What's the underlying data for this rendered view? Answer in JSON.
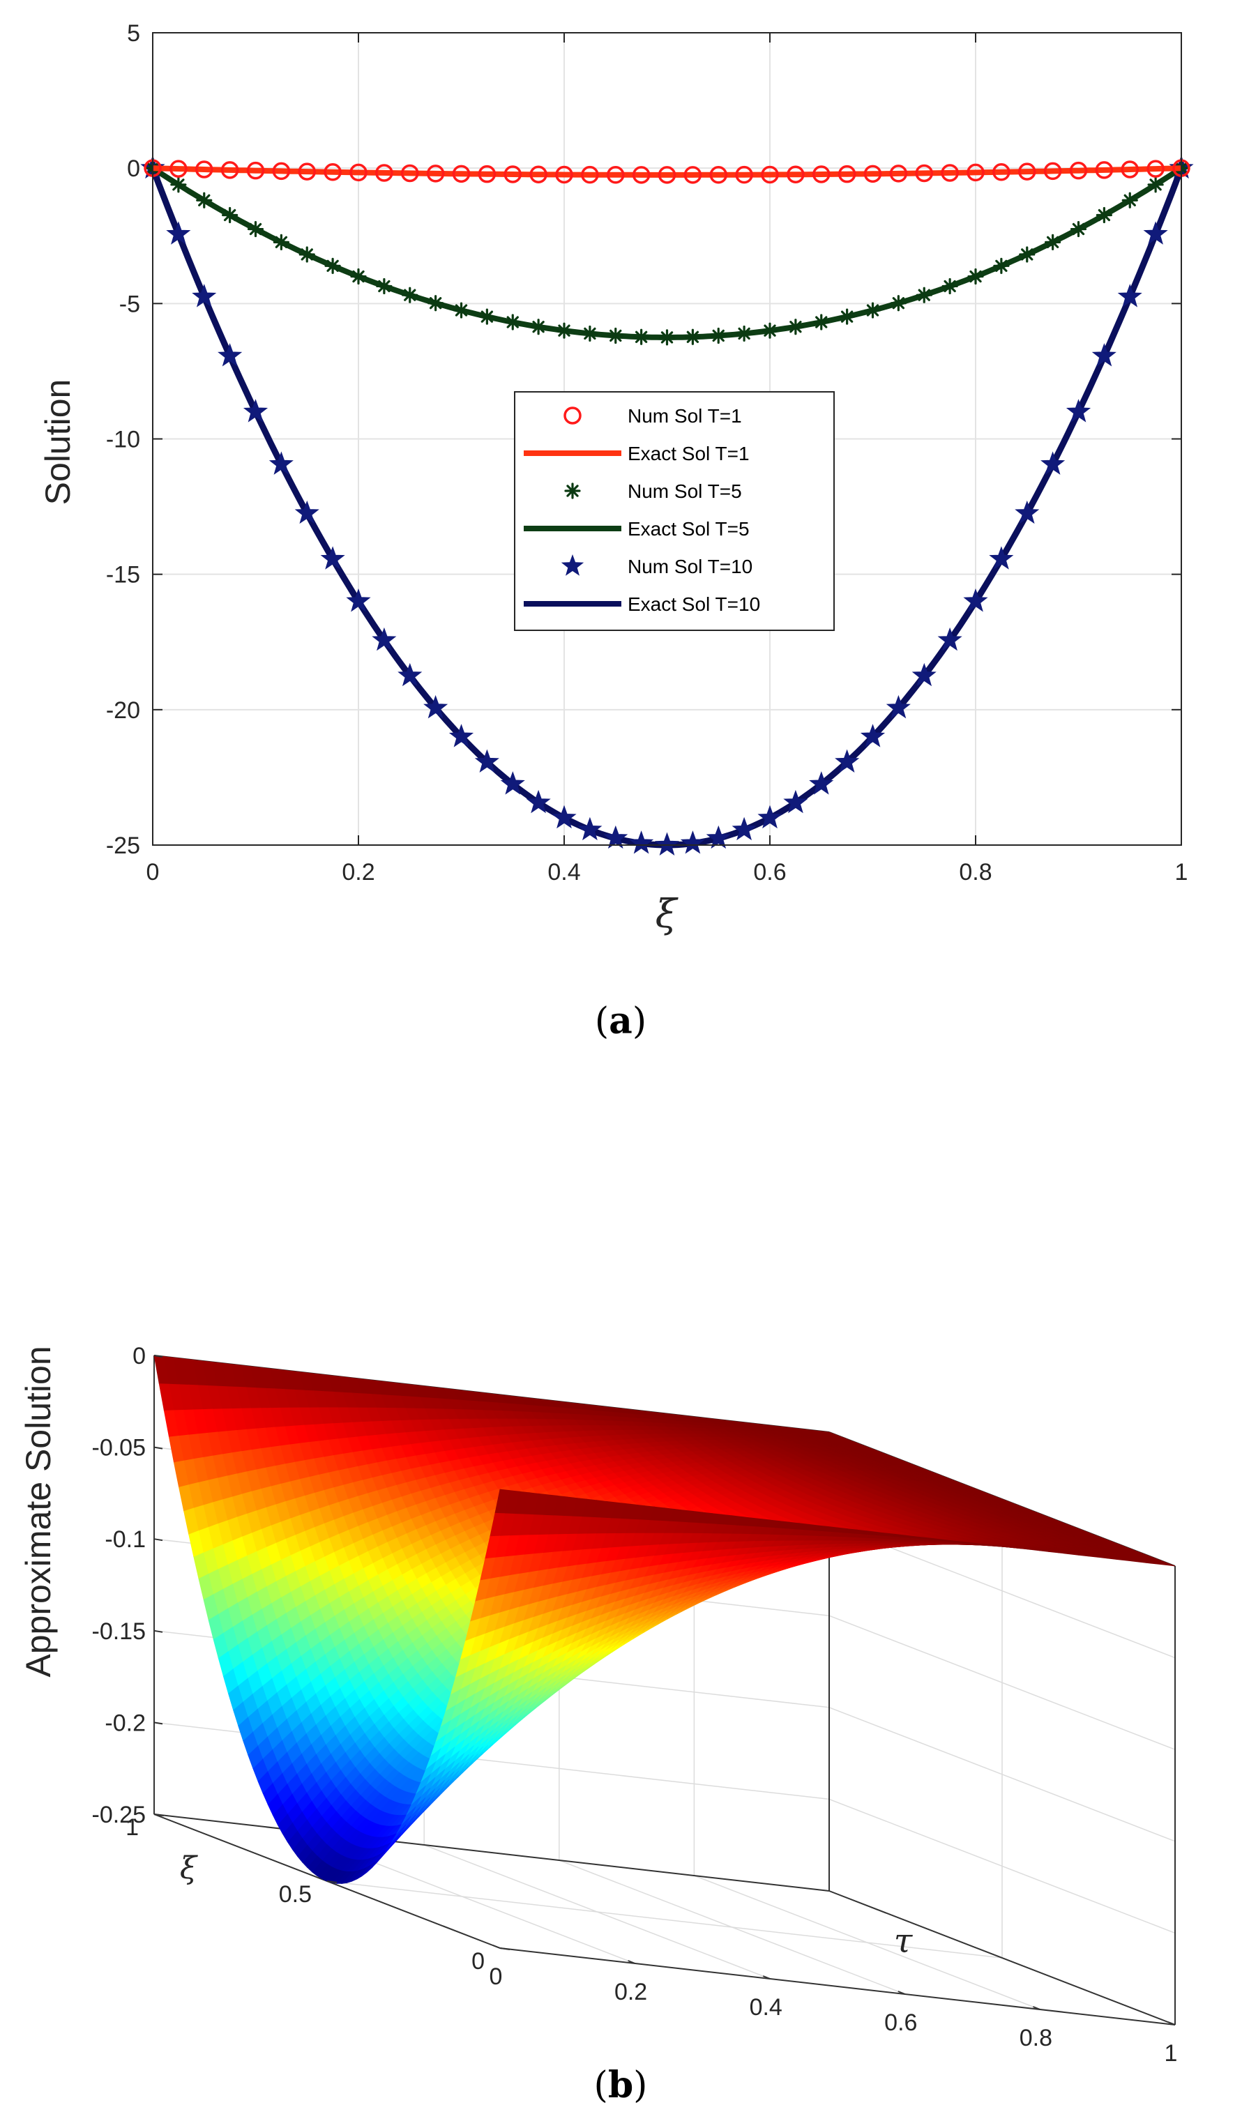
{
  "chart_data": [
    {
      "type": "line",
      "panel": "a",
      "caption_open": "(",
      "caption_letter": "a",
      "caption_close": ")",
      "title": "",
      "xlabel": "ξ",
      "ylabel": "Solution",
      "xlim": [
        0,
        1
      ],
      "ylim": [
        -25,
        5
      ],
      "xticks": [
        "0",
        "0.2",
        "0.4",
        "0.6",
        "0.8",
        "1"
      ],
      "yticks": [
        "5",
        "0",
        "-5",
        "-10",
        "-15",
        "-20",
        "-25"
      ],
      "grid": true,
      "legend_position": "center",
      "series": [
        {
          "name": "Num Sol T=1",
          "kind": "markers",
          "marker": "circle",
          "color": "#ff1a1a",
          "T": 1
        },
        {
          "name": "Exact Sol T=1",
          "kind": "line",
          "color": "#ff3311",
          "T": 1
        },
        {
          "name": "Num Sol T=5",
          "kind": "markers",
          "marker": "asterisk",
          "color": "#0b3a12",
          "T": 5
        },
        {
          "name": "Exact Sol T=5",
          "kind": "line",
          "color": "#0d3d14",
          "T": 5
        },
        {
          "name": "Num Sol T=10",
          "kind": "markers",
          "marker": "star",
          "color": "#101a7a",
          "T": 10
        },
        {
          "name": "Exact Sol T=10",
          "kind": "line",
          "color": "#0a0f5c",
          "T": 10
        }
      ],
      "function": "u(ξ,T) = -T^2 · ξ(1-ξ)",
      "x_points": [
        0,
        0.025,
        0.05,
        0.075,
        0.1,
        0.125,
        0.15,
        0.175,
        0.2,
        0.225,
        0.25,
        0.275,
        0.3,
        0.325,
        0.35,
        0.375,
        0.4,
        0.425,
        0.45,
        0.475,
        0.5,
        0.525,
        0.55,
        0.575,
        0.6,
        0.625,
        0.65,
        0.675,
        0.7,
        0.725,
        0.75,
        0.775,
        0.8,
        0.825,
        0.85,
        0.875,
        0.9,
        0.925,
        0.95,
        0.975,
        1
      ]
    },
    {
      "type": "surface",
      "panel": "b",
      "caption_open": "(",
      "caption_letter": "b",
      "caption_close": ")",
      "title": "",
      "xlabel": "τ",
      "ylabel": "ξ",
      "zlabel": "Approximate Solution",
      "xlim": [
        0,
        1
      ],
      "ylim": [
        0,
        1
      ],
      "zlim": [
        -0.25,
        0
      ],
      "xticks": [
        "0",
        "0.2",
        "0.4",
        "0.6",
        "0.8",
        "1"
      ],
      "yticks": [
        "0",
        "0.5",
        "1"
      ],
      "zticks": [
        "0",
        "-0.05",
        "-0.1",
        "-0.15",
        "-0.2",
        "-0.25"
      ],
      "grid": true,
      "colormap": "jet",
      "function": "u(ξ,τ) = -(1-τ)^2 · ξ(1-ξ)"
    }
  ]
}
